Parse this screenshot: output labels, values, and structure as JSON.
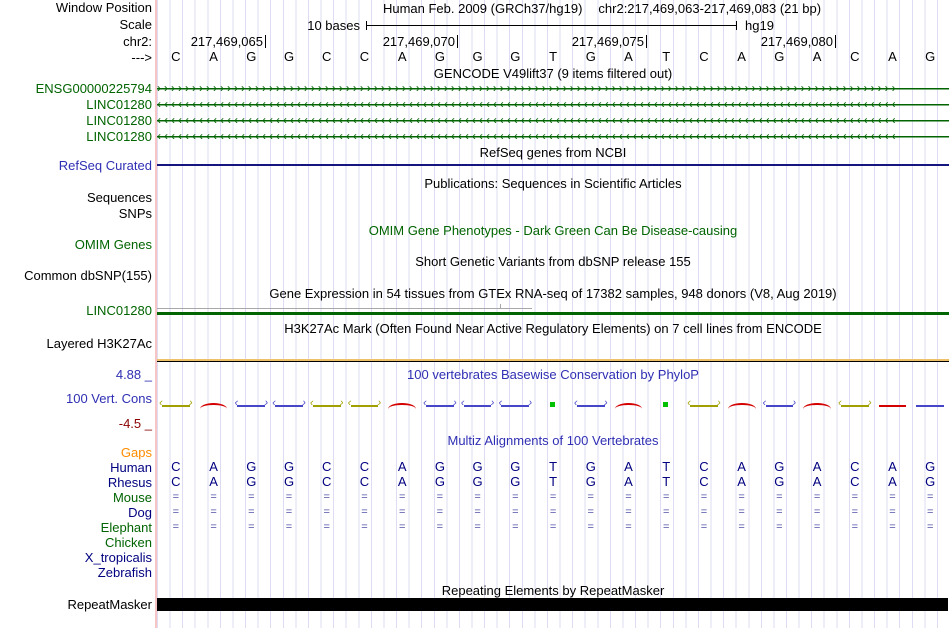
{
  "header": {
    "assembly": "Human Feb. 2009 (GRCh37/hg19)",
    "position": "chr2:217,469,063-217,469,083 (21 bp)",
    "window_position_label": "Window Position",
    "scale_label": "Scale",
    "scale_value": "10 bases",
    "scale_db": "hg19",
    "chrom_label": "chr2:",
    "strand_label": "--->",
    "coordinates": [
      "217,469,065",
      "217,469,070",
      "217,469,075",
      "217,469,080"
    ]
  },
  "ruler": {
    "bases": [
      "C",
      "A",
      "G",
      "G",
      "C",
      "C",
      "A",
      "G",
      "G",
      "G",
      "T",
      "G",
      "A",
      "T",
      "C",
      "A",
      "G",
      "A",
      "C",
      "A",
      "G"
    ]
  },
  "gencode": {
    "title": "GENCODE V49lift37 (9 items filtered out)",
    "arrow_right": {
      "glyph": "›",
      "count": 106
    },
    "arrow_left": {
      "glyph": "‹",
      "count": 106
    },
    "items": [
      {
        "label": "ENSG00000225794",
        "direction": "right"
      },
      {
        "label": "LINC01280",
        "direction": "left"
      },
      {
        "label": "LINC01280",
        "direction": "left"
      },
      {
        "label": "LINC01280",
        "direction": "left"
      }
    ]
  },
  "refseq": {
    "title": "RefSeq genes from NCBI",
    "label": "RefSeq Curated"
  },
  "publications": {
    "title": "Publications: Sequences in Scientific Articles",
    "label": "Sequences"
  },
  "snps": {
    "label": "SNPs"
  },
  "omim": {
    "title": "OMIM Gene Phenotypes - Dark Green Can Be Disease-causing",
    "label": "OMIM Genes"
  },
  "dbsnp": {
    "title": "Short Genetic Variants from dbSNP release 155",
    "label": "Common dbSNP(155)"
  },
  "gtex": {
    "title": "Gene Expression in 54 tissues from GTEx RNA-seq of 17382 samples, 948 donors (V8, Aug 2019)",
    "label": "LINC01280"
  },
  "h3k27ac": {
    "title": "H3K27Ac Mark (Often Found Near Active Regulatory Elements) on 7 cell lines from ENCODE",
    "label": "Layered H3K27Ac"
  },
  "conservation": {
    "title": "100 vertebrates Basewise Conservation by PhyloP",
    "label": "100 Vert. Cons",
    "max": "4.88 _",
    "min": "-4.5 _",
    "glyphs": [
      {
        "c": "olive",
        "s": "arrow"
      },
      {
        "c": "red",
        "s": "arc"
      },
      {
        "c": "blue",
        "s": "arrow"
      },
      {
        "c": "blue",
        "s": "arrow"
      },
      {
        "c": "olive",
        "s": "arrow"
      },
      {
        "c": "olive",
        "s": "arrow"
      },
      {
        "c": "red",
        "s": "arc"
      },
      {
        "c": "blue",
        "s": "arrow"
      },
      {
        "c": "blue",
        "s": "arrow"
      },
      {
        "c": "blue",
        "s": "arrow"
      },
      {
        "c": "green",
        "s": "dot"
      },
      {
        "c": "blue",
        "s": "arrow"
      },
      {
        "c": "red",
        "s": "arc"
      },
      {
        "c": "green",
        "s": "dot"
      },
      {
        "c": "olive",
        "s": "arrow"
      },
      {
        "c": "red",
        "s": "arc"
      },
      {
        "c": "blue",
        "s": "arrow"
      },
      {
        "c": "red",
        "s": "arc"
      },
      {
        "c": "olive",
        "s": "arrow"
      },
      {
        "c": "red",
        "s": "line"
      },
      {
        "c": "blue",
        "s": "line"
      }
    ]
  },
  "multiz": {
    "title": "Multiz Alignments of 100 Vertebrates",
    "rows": [
      {
        "label": "Gaps",
        "color": "orange",
        "cells": []
      },
      {
        "label": "Human",
        "color": "navy",
        "cells": [
          "C",
          "A",
          "G",
          "G",
          "C",
          "C",
          "A",
          "G",
          "G",
          "G",
          "T",
          "G",
          "A",
          "T",
          "C",
          "A",
          "G",
          "A",
          "C",
          "A",
          "G"
        ]
      },
      {
        "label": "Rhesus",
        "color": "navy",
        "cells": [
          "C",
          "A",
          "G",
          "G",
          "C",
          "C",
          "A",
          "G",
          "G",
          "G",
          "T",
          "G",
          "A",
          "T",
          "C",
          "A",
          "G",
          "A",
          "C",
          "A",
          "G"
        ]
      },
      {
        "label": "Mouse",
        "color": "green",
        "cells": [
          "=",
          "=",
          "=",
          "=",
          "=",
          "=",
          "=",
          "=",
          "=",
          "=",
          "=",
          "=",
          "=",
          "=",
          "=",
          "=",
          "=",
          "=",
          "=",
          "=",
          "="
        ]
      },
      {
        "label": "Dog",
        "color": "navy",
        "cells": [
          "=",
          "=",
          "=",
          "=",
          "=",
          "=",
          "=",
          "=",
          "=",
          "=",
          "=",
          "=",
          "=",
          "=",
          "=",
          "=",
          "=",
          "=",
          "=",
          "=",
          "="
        ]
      },
      {
        "label": "Elephant",
        "color": "green",
        "cells": [
          "=",
          "=",
          "=",
          "=",
          "=",
          "=",
          "=",
          "=",
          "=",
          "=",
          "=",
          "=",
          "=",
          "=",
          "=",
          "=",
          "=",
          "=",
          "=",
          "=",
          "="
        ]
      },
      {
        "label": "Chicken",
        "color": "green",
        "cells": []
      },
      {
        "label": "X_tropicalis",
        "color": "navy",
        "cells": []
      },
      {
        "label": "Zebrafish",
        "color": "navy",
        "cells": []
      }
    ]
  },
  "repeatmasker": {
    "title": "Repeating Elements by RepeatMasker",
    "label": "RepeatMasker"
  }
}
